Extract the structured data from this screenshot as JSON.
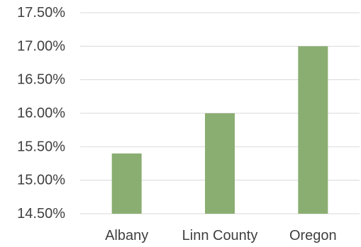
{
  "chart_data": {
    "type": "bar",
    "title": "",
    "xlabel": "",
    "ylabel": "",
    "categories": [
      "Albany",
      "Linn County",
      "Oregon"
    ],
    "values": [
      15.4,
      16.0,
      17.0
    ],
    "ylim": [
      14.5,
      17.5
    ],
    "yticks": [
      14.5,
      15.0,
      15.5,
      16.0,
      16.5,
      17.0,
      17.5
    ],
    "ytick_labels": [
      "14.50%",
      "15.00%",
      "15.50%",
      "16.00%",
      "16.50%",
      "17.00%",
      "17.50%"
    ],
    "grid": true,
    "legend": "none",
    "bar_color": "#8aae72",
    "grid_color": "#d9d9d9"
  }
}
